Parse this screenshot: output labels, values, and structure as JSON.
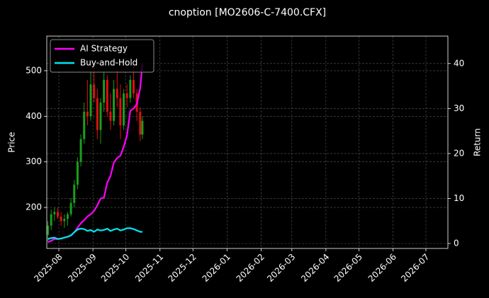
{
  "chart_data": {
    "type": "candlestick",
    "title": "cnoption [MO2606-C-7400.CFX]",
    "y_label": "Price",
    "y2_label": "Return",
    "x": [
      "2025-07-22",
      "2025-07-25",
      "2025-07-28",
      "2025-07-31",
      "2025-08-03",
      "2025-08-06",
      "2025-08-09",
      "2025-08-12",
      "2025-08-15",
      "2025-08-18",
      "2025-08-21",
      "2025-08-24",
      "2025-08-27",
      "2025-08-30",
      "2025-09-02",
      "2025-09-05",
      "2025-09-08",
      "2025-09-11",
      "2025-09-14",
      "2025-09-17",
      "2025-09-20",
      "2025-09-23",
      "2025-09-26",
      "2025-09-29",
      "2025-10-02",
      "2025-10-05",
      "2025-10-08",
      "2025-10-11",
      "2025-10-14",
      "2025-10-16"
    ],
    "open": [
      140,
      160,
      185,
      190,
      180,
      170,
      175,
      185,
      210,
      250,
      300,
      350,
      410,
      400,
      470,
      440,
      370,
      430,
      480,
      410,
      390,
      460,
      440,
      380,
      450,
      440,
      480,
      450,
      410,
      360
    ],
    "high": [
      170,
      195,
      200,
      200,
      190,
      185,
      190,
      220,
      260,
      310,
      360,
      430,
      480,
      500,
      510,
      460,
      440,
      500,
      490,
      450,
      480,
      500,
      470,
      460,
      470,
      490,
      510,
      460,
      420,
      400
    ],
    "low": [
      125,
      150,
      170,
      175,
      160,
      155,
      160,
      180,
      200,
      240,
      290,
      340,
      380,
      390,
      430,
      350,
      340,
      410,
      400,
      370,
      380,
      420,
      350,
      370,
      420,
      430,
      440,
      390,
      345,
      350
    ],
    "close": [
      160,
      185,
      190,
      180,
      170,
      175,
      185,
      210,
      250,
      300,
      350,
      410,
      400,
      470,
      440,
      370,
      430,
      480,
      410,
      390,
      460,
      440,
      380,
      450,
      440,
      480,
      450,
      410,
      360,
      390
    ],
    "up_color": "#1a9e1a",
    "down_color": "#e01010",
    "series": [
      {
        "name": "AI Strategy",
        "color": "#ff00ff",
        "axis": "y2",
        "values": [
          0.3,
          0.6,
          1,
          1,
          1.1,
          1.3,
          1.5,
          1.8,
          2.5,
          3.5,
          4.5,
          5.2,
          6.0,
          6.5,
          7.2,
          8.5,
          10,
          10.2,
          13.5,
          15,
          18,
          19,
          19.5,
          21.5,
          24,
          29.5,
          30,
          31,
          34.5,
          40
        ]
      },
      {
        "name": "Buy-and-Hold",
        "color": "#00e5ee",
        "axis": "y2",
        "values": [
          1,
          1.2,
          1.3,
          1,
          1.1,
          1.3,
          1.5,
          1.8,
          2.5,
          3.1,
          3.3,
          3.2,
          2.8,
          3.0,
          2.6,
          3.1,
          2.9,
          3.0,
          3.3,
          2.8,
          3.1,
          3.3,
          2.9,
          3.1,
          3.4,
          3.4,
          3.2,
          2.9,
          2.6,
          2.6
        ]
      }
    ],
    "xlim": [
      "2025-07-21",
      "2026-07-21"
    ],
    "xticks": [
      "2025-08",
      "2025-09",
      "2025-10",
      "2025-11",
      "2025-12",
      "2026-01",
      "2026-02",
      "2026-03",
      "2026-04",
      "2026-05",
      "2026-06",
      "2026-07"
    ],
    "ylim": [
      110,
      576
    ],
    "yticks": [
      200,
      300,
      400,
      500
    ],
    "y2lim": [
      -1.1,
      46.1
    ],
    "y2ticks": [
      0,
      10,
      20,
      30,
      40
    ],
    "grid": true,
    "legend": "upper left"
  }
}
